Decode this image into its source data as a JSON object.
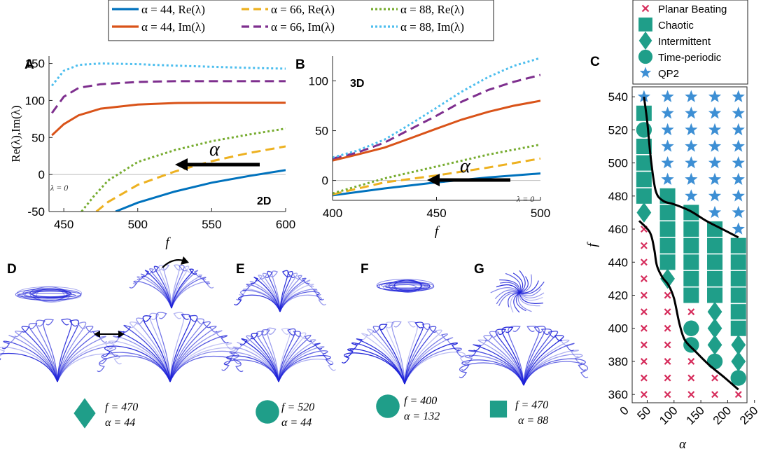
{
  "colors": {
    "blue": "#0072bd",
    "orange": "#d95319",
    "yellow": "#edb120",
    "purple": "#7e2f8e",
    "green": "#77ac30",
    "cyan": "#4dbeee",
    "teal": "#1f9e89",
    "crimson": "#d62d5c",
    "star": "#3d8fd4",
    "filament": "#1e22d8"
  },
  "legend_top": [
    {
      "label": "α = 44, Re(λ)",
      "color": "#0072bd",
      "dash": "solid"
    },
    {
      "label": "α = 66, Re(λ)",
      "color": "#edb120",
      "dash": "dashed"
    },
    {
      "label": "α = 88, Re(λ)",
      "color": "#77ac30",
      "dash": "dotted"
    },
    {
      "label": "α = 44, Im(λ)",
      "color": "#d95319",
      "dash": "solid"
    },
    {
      "label": "α = 66, Im(λ)",
      "color": "#7e2f8e",
      "dash": "dashed"
    },
    {
      "label": "α = 88, Im(λ)",
      "color": "#4dbeee",
      "dash": "dotted"
    }
  ],
  "panel_labels": {
    "A": "A",
    "B": "B",
    "C": "C",
    "D": "D",
    "E": "E",
    "F": "F",
    "G": "G"
  },
  "tags": {
    "twoD": "2D",
    "threeD": "3D",
    "lambda0": "λ = 0",
    "alpha_arrow": "α"
  },
  "chart_data": [
    {
      "id": "A",
      "type": "line",
      "xlabel": "f",
      "ylabel": "Re(λ),Im(λ)",
      "xlim": [
        440,
        600
      ],
      "ylim": [
        -50,
        160
      ],
      "xticks": [
        450,
        500,
        550,
        600
      ],
      "yticks": [
        -50,
        0,
        50,
        100,
        150
      ],
      "series": [
        {
          "name": "α = 44, Re(λ)",
          "x": [
            485,
            500,
            525,
            550,
            575,
            600
          ],
          "y": [
            -50,
            -38,
            -23,
            -11,
            -2,
            6
          ]
        },
        {
          "name": "α = 66, Re(λ)",
          "x": [
            472,
            480,
            500,
            525,
            550,
            575,
            600
          ],
          "y": [
            -50,
            -37,
            -14,
            4,
            18,
            29,
            38
          ]
        },
        {
          "name": "α = 88, Re(λ)",
          "x": [
            462,
            470,
            480,
            500,
            525,
            550,
            575,
            600
          ],
          "y": [
            -50,
            -30,
            -8,
            17,
            33,
            45,
            54,
            62
          ]
        },
        {
          "name": "α = 44, Im(λ)",
          "x": [
            442,
            450,
            460,
            475,
            500,
            525,
            550,
            575,
            600
          ],
          "y": [
            53,
            68,
            80,
            89,
            94.5,
            96.5,
            97,
            97,
            97
          ]
        },
        {
          "name": "α = 66, Im(λ)",
          "x": [
            442,
            450,
            460,
            475,
            500,
            525,
            550,
            575,
            600
          ],
          "y": [
            83,
            105,
            117,
            122,
            125,
            126,
            126,
            126,
            126
          ]
        },
        {
          "name": "α = 88, Im(λ)",
          "x": [
            442,
            450,
            460,
            475,
            500,
            525,
            550,
            575,
            600
          ],
          "y": [
            120,
            140,
            148,
            150,
            149,
            147,
            145.5,
            144,
            143
          ]
        }
      ]
    },
    {
      "id": "B",
      "type": "line",
      "xlabel": "f",
      "ylabel": "",
      "xlim": [
        400,
        500
      ],
      "ylim": [
        -20,
        125
      ],
      "xticks": [
        400,
        450,
        500
      ],
      "yticks": [
        0,
        50,
        100
      ],
      "series": [
        {
          "name": "α = 44, Re(λ)",
          "x": [
            400,
            425,
            450,
            475,
            500
          ],
          "y": [
            -15,
            -8,
            -2,
            3,
            7
          ]
        },
        {
          "name": "α = 66, Re(λ)",
          "x": [
            400,
            425,
            450,
            475,
            500
          ],
          "y": [
            -14,
            -2,
            5,
            13,
            22
          ]
        },
        {
          "name": "α = 88, Re(λ)",
          "x": [
            400,
            425,
            450,
            475,
            500
          ],
          "y": [
            -13,
            2,
            14,
            26,
            36
          ]
        },
        {
          "name": "α = 44, Im(λ)",
          "x": [
            400,
            412,
            425,
            437,
            450,
            462,
            475,
            487,
            500
          ],
          "y": [
            20,
            26,
            33,
            42,
            52,
            61,
            69,
            75,
            80
          ]
        },
        {
          "name": "α = 66, Im(λ)",
          "x": [
            400,
            412,
            425,
            437,
            450,
            462,
            475,
            487,
            500
          ],
          "y": [
            22,
            28,
            38,
            51,
            65,
            79,
            91,
            99,
            106
          ]
        },
        {
          "name": "α = 88, Im(λ)",
          "x": [
            400,
            412,
            425,
            437,
            450,
            462,
            475,
            487,
            500
          ],
          "y": [
            23,
            30,
            41,
            56,
            73,
            89,
            104,
            115,
            123
          ]
        }
      ]
    },
    {
      "id": "C",
      "type": "scatter",
      "xlabel": "α",
      "ylabel": "f",
      "xlim": [
        22,
        236
      ],
      "ylim": [
        355,
        546
      ],
      "xticks": [
        0,
        50,
        100,
        150,
        200,
        250
      ],
      "yticks": [
        360,
        380,
        400,
        420,
        440,
        460,
        480,
        500,
        520,
        540
      ],
      "legend": [
        {
          "label": "Planar Beating",
          "marker": "x"
        },
        {
          "label": "Chaotic",
          "marker": "square"
        },
        {
          "label": "Intermittent",
          "marker": "diamond"
        },
        {
          "label": "Time-periodic",
          "marker": "circle"
        },
        {
          "label": "QP2",
          "marker": "star"
        }
      ],
      "alpha_values": [
        44,
        88,
        132,
        176,
        220
      ],
      "f_values": [
        360,
        370,
        380,
        390,
        400,
        410,
        420,
        430,
        440,
        450,
        460,
        470,
        480,
        490,
        500,
        510,
        520,
        530,
        540
      ],
      "grid_rows_top_to_bottom": [
        {
          "f": 540,
          "markers": [
            "star",
            "star",
            "star",
            "star",
            "star"
          ]
        },
        {
          "f": 530,
          "markers": [
            "square",
            "star",
            "star",
            "star",
            "star"
          ]
        },
        {
          "f": 520,
          "markers": [
            "circle",
            "star",
            "star",
            "star",
            "star"
          ]
        },
        {
          "f": 510,
          "markers": [
            "square",
            "star",
            "star",
            "star",
            "star"
          ]
        },
        {
          "f": 500,
          "markers": [
            "square",
            "star",
            "star",
            "star",
            "star"
          ]
        },
        {
          "f": 490,
          "markers": [
            "square",
            "star",
            "star",
            "star",
            "star"
          ]
        },
        {
          "f": 480,
          "markers": [
            "square",
            "square",
            "star",
            "star",
            "star"
          ]
        },
        {
          "f": 470,
          "markers": [
            "diamond",
            "square",
            "square",
            "star",
            "star"
          ]
        },
        {
          "f": 460,
          "markers": [
            "x",
            "square",
            "square",
            "square",
            "star"
          ]
        },
        {
          "f": 450,
          "markers": [
            "x",
            "square",
            "square",
            "square",
            "square"
          ]
        },
        {
          "f": 440,
          "markers": [
            "x",
            "square",
            "square",
            "square",
            "square"
          ]
        },
        {
          "f": 430,
          "markers": [
            "x",
            "diamond",
            "square",
            "square",
            "square"
          ]
        },
        {
          "f": 420,
          "markers": [
            "x",
            "x",
            "square",
            "square",
            "square"
          ]
        },
        {
          "f": 410,
          "markers": [
            "x",
            "x",
            "x",
            "diamond",
            "square"
          ]
        },
        {
          "f": 400,
          "markers": [
            "x",
            "x",
            "circle",
            "diamond",
            "square"
          ]
        },
        {
          "f": 390,
          "markers": [
            "x",
            "x",
            "circle",
            "diamond",
            "diamond"
          ]
        },
        {
          "f": 380,
          "markers": [
            "x",
            "x",
            "x",
            "circle",
            "diamond"
          ]
        },
        {
          "f": 370,
          "markers": [
            "x",
            "x",
            "x",
            "x",
            "circle"
          ]
        },
        {
          "f": 360,
          "markers": [
            "x",
            "x",
            "x",
            "x",
            "x"
          ]
        }
      ],
      "boundaries": [
        {
          "alpha": [
            44,
            50,
            57,
            66,
            80,
            100,
            130,
            160,
            190,
            220
          ],
          "f": [
            540,
            525,
            502,
            483,
            477,
            475,
            471,
            465,
            460,
            455
          ]
        },
        {
          "alpha": [
            35,
            55,
            63,
            68,
            78,
            90,
            100,
            110,
            120,
            140,
            165,
            195,
            220
          ],
          "f": [
            465,
            458,
            448,
            438,
            431,
            426,
            418,
            403,
            393,
            386,
            378,
            370,
            363
          ]
        }
      ]
    }
  ],
  "examples": [
    {
      "id": "D",
      "f": "f = 470",
      "alpha": "α = 44",
      "marker": "diamond"
    },
    {
      "id": "E",
      "f": "f = 520",
      "alpha": "α = 44",
      "marker": "circle"
    },
    {
      "id": "F",
      "f": "f = 400",
      "alpha": "α = 132",
      "marker": "circle"
    },
    {
      "id": "G",
      "f": "f = 470",
      "alpha": "α = 88",
      "marker": "square"
    }
  ]
}
